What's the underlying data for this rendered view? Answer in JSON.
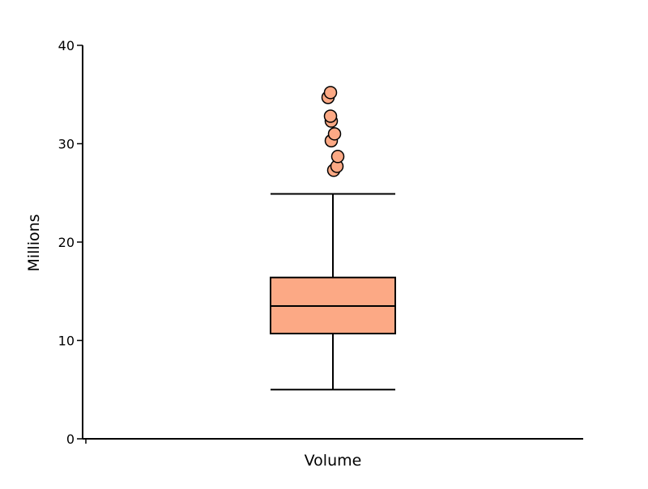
{
  "chart_data": {
    "type": "box",
    "ylabel": "Millions",
    "ylim": [
      0,
      40
    ],
    "yticks": [
      0,
      10,
      20,
      30,
      40
    ],
    "grid": false,
    "categories": [
      "Volume"
    ],
    "boxes": [
      {
        "category": "Volume",
        "whisker_low": 5.0,
        "q1": 10.7,
        "median": 13.5,
        "q3": 16.4,
        "whisker_high": 24.9,
        "outliers": [
          27.3,
          27.7,
          28.7,
          30.3,
          31.0,
          32.3,
          32.8,
          34.7,
          35.2
        ]
      }
    ],
    "colors": {
      "box_fill": "#FCA985",
      "outlier_fill": "#FCA985",
      "stroke": "#000000"
    }
  }
}
